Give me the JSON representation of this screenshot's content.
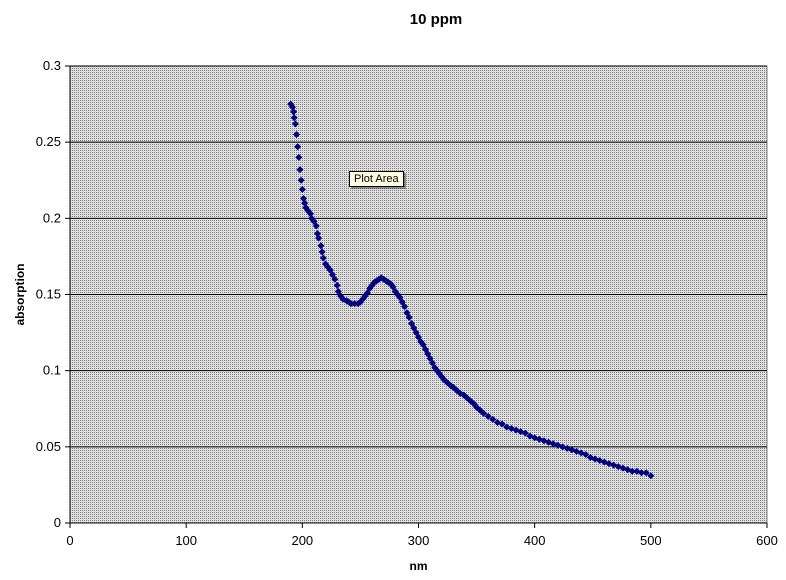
{
  "tooltip_text": "Plot Area",
  "chart_data": {
    "type": "scatter",
    "title": "10 ppm",
    "xlabel": "nm",
    "ylabel": "absorption",
    "xlim": [
      0,
      600
    ],
    "ylim": [
      0,
      0.3
    ],
    "xticks": [
      "0",
      "100",
      "200",
      "300",
      "400",
      "500",
      "600"
    ],
    "yticks": [
      "0",
      "0.05",
      "0.1",
      "0.15",
      "0.2",
      "0.25",
      "0.3"
    ],
    "grid": "horizontal",
    "legend": "none",
    "colors": {
      "series": "#000080",
      "plot_bg": "#c0c0c0",
      "grid": "#000000"
    },
    "series": [
      {
        "marker": "diamond",
        "points": [
          [
            190,
            0.275
          ],
          [
            191.5,
            0.273
          ],
          [
            192.5,
            0.27
          ],
          [
            193,
            0.266
          ],
          [
            194,
            0.262
          ],
          [
            195,
            0.255
          ],
          [
            196,
            0.247
          ],
          [
            197,
            0.24
          ],
          [
            198,
            0.232
          ],
          [
            199,
            0.225
          ],
          [
            200,
            0.219
          ],
          [
            201,
            0.213
          ],
          [
            202,
            0.21
          ],
          [
            203,
            0.207
          ],
          [
            205,
            0.205
          ],
          [
            207,
            0.203
          ],
          [
            208,
            0.2
          ],
          [
            210,
            0.198
          ],
          [
            212,
            0.195
          ],
          [
            213,
            0.19
          ],
          [
            214,
            0.187
          ],
          [
            216,
            0.182
          ],
          [
            217,
            0.178
          ],
          [
            218,
            0.174
          ],
          [
            220,
            0.17
          ],
          [
            222,
            0.168
          ],
          [
            224,
            0.166
          ],
          [
            226,
            0.163
          ],
          [
            228,
            0.16
          ],
          [
            230,
            0.156
          ],
          [
            231,
            0.152
          ],
          [
            233,
            0.149
          ],
          [
            235,
            0.147
          ],
          [
            238,
            0.146
          ],
          [
            240,
            0.145
          ],
          [
            242,
            0.144
          ],
          [
            245,
            0.144
          ],
          [
            248,
            0.144
          ],
          [
            250,
            0.145
          ],
          [
            252,
            0.147
          ],
          [
            254,
            0.149
          ],
          [
            256,
            0.151
          ],
          [
            258,
            0.154
          ],
          [
            260,
            0.156
          ],
          [
            262,
            0.158
          ],
          [
            264,
            0.159
          ],
          [
            266,
            0.16
          ],
          [
            268,
            0.161
          ],
          [
            270,
            0.16
          ],
          [
            272,
            0.159
          ],
          [
            274,
            0.158
          ],
          [
            276,
            0.157
          ],
          [
            278,
            0.155
          ],
          [
            280,
            0.152
          ],
          [
            282,
            0.15
          ],
          [
            284,
            0.148
          ],
          [
            286,
            0.145
          ],
          [
            288,
            0.142
          ],
          [
            290,
            0.138
          ],
          [
            292,
            0.135
          ],
          [
            294,
            0.131
          ],
          [
            296,
            0.128
          ],
          [
            298,
            0.125
          ],
          [
            300,
            0.122
          ],
          [
            302,
            0.119
          ],
          [
            304,
            0.117
          ],
          [
            306,
            0.114
          ],
          [
            308,
            0.111
          ],
          [
            310,
            0.108
          ],
          [
            312,
            0.105
          ],
          [
            314,
            0.102
          ],
          [
            316,
            0.1
          ],
          [
            318,
            0.098
          ],
          [
            320,
            0.096
          ],
          [
            322,
            0.094
          ],
          [
            325,
            0.092
          ],
          [
            328,
            0.09
          ],
          [
            330,
            0.089
          ],
          [
            333,
            0.087
          ],
          [
            336,
            0.085
          ],
          [
            339,
            0.084
          ],
          [
            342,
            0.082
          ],
          [
            345,
            0.08
          ],
          [
            348,
            0.078
          ],
          [
            350,
            0.076
          ],
          [
            353,
            0.074
          ],
          [
            356,
            0.072
          ],
          [
            360,
            0.07
          ],
          [
            364,
            0.068
          ],
          [
            368,
            0.066
          ],
          [
            372,
            0.065
          ],
          [
            376,
            0.063
          ],
          [
            380,
            0.062
          ],
          [
            384,
            0.061
          ],
          [
            388,
            0.06
          ],
          [
            392,
            0.059
          ],
          [
            396,
            0.057
          ],
          [
            400,
            0.056
          ],
          [
            404,
            0.055
          ],
          [
            408,
            0.054
          ],
          [
            412,
            0.053
          ],
          [
            416,
            0.052
          ],
          [
            420,
            0.051
          ],
          [
            424,
            0.05
          ],
          [
            428,
            0.049
          ],
          [
            432,
            0.048
          ],
          [
            436,
            0.047
          ],
          [
            440,
            0.046
          ],
          [
            444,
            0.045
          ],
          [
            448,
            0.043
          ],
          [
            452,
            0.042
          ],
          [
            456,
            0.041
          ],
          [
            460,
            0.04
          ],
          [
            464,
            0.039
          ],
          [
            468,
            0.038
          ],
          [
            472,
            0.037
          ],
          [
            476,
            0.036
          ],
          [
            480,
            0.035
          ],
          [
            484,
            0.034
          ],
          [
            488,
            0.034
          ],
          [
            492,
            0.033
          ],
          [
            496,
            0.033
          ],
          [
            500,
            0.031
          ]
        ]
      }
    ]
  }
}
